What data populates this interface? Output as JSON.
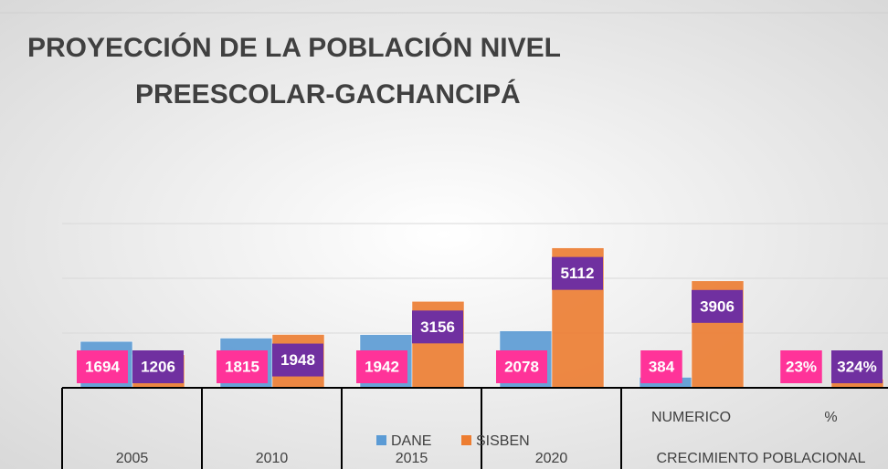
{
  "chart_data": {
    "type": "bar",
    "title": [
      "PROYECCIÓN DE LA POBLACIÓN NIVEL",
      "PREESCOLAR-GACHANCIPÁ"
    ],
    "categories": [
      "2005",
      "2010",
      "2015",
      "2020",
      "NUMERICO",
      "%"
    ],
    "x_group_label": "CRECIMIENTO POBLACIONAL",
    "series": [
      {
        "name": "DANE",
        "color": "#5b9bd5",
        "label_color": "#ff3399",
        "values": [
          1694,
          1815,
          1942,
          2078,
          384,
          23
        ],
        "value_labels": [
          "1694",
          "1815",
          "1942",
          "2078",
          "384",
          "23%"
        ]
      },
      {
        "name": "SISBEN",
        "color": "#ed7d31",
        "label_color": "#7030a0",
        "values": [
          1206,
          1948,
          3156,
          5112,
          3906,
          324
        ],
        "value_labels": [
          "1206",
          "1948",
          "3156",
          "5112",
          "3906",
          "324%"
        ]
      }
    ],
    "ylim": [
      0,
      6000
    ],
    "yticks": [
      0,
      2000,
      4000,
      6000
    ],
    "grid": true,
    "legend": "bottom"
  }
}
